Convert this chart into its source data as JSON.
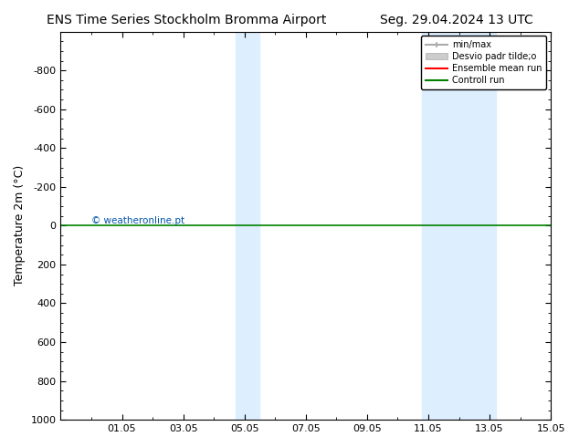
{
  "title_left": "ENS Time Series Stockholm Bromma Airport",
  "title_right": "Seg. 29.04.2024 13 UTC",
  "ylabel": "Temperature 2m (°C)",
  "copyright": "© weatheronline.pt",
  "ylim_bottom": 1000,
  "ylim_top": -1000,
  "yticks": [
    -800,
    -600,
    -400,
    -200,
    0,
    200,
    400,
    600,
    800,
    1000
  ],
  "xlim_start": "2024-04-29",
  "xlim_end": "2024-05-15",
  "xtick_labels": [
    "01.05",
    "03.05",
    "05.05",
    "07.05",
    "09.05",
    "11.05",
    "13.05",
    "15.05"
  ],
  "xtick_positions": [
    1,
    3,
    5,
    7,
    9,
    11,
    13,
    15
  ],
  "shade_bands": [
    {
      "x_start": 4.7,
      "x_end": 5.5
    },
    {
      "x_start": 10.8,
      "x_end": 13.2
    }
  ],
  "green_line_y": 0,
  "legend_entries": [
    {
      "label": "min/max",
      "color": "#aaaaaa",
      "lw": 1.5
    },
    {
      "label": "Desvio padr tilde;o",
      "color": "#cccccc",
      "lw": 6
    },
    {
      "label": "Ensemble mean run",
      "color": "red",
      "lw": 1.5
    },
    {
      "label": "Controll run",
      "color": "green",
      "lw": 1.5
    }
  ],
  "background_color": "#ffffff",
  "shade_color": "#ddeeff",
  "title_fontsize": 10,
  "axis_fontsize": 9,
  "tick_fontsize": 8
}
